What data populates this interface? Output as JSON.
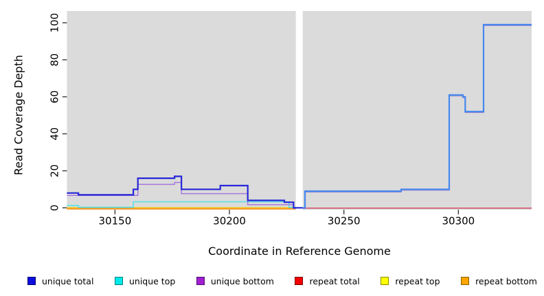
{
  "chart_data": {
    "type": "line",
    "subtype": "step",
    "title": "",
    "xlabel": "Coordinate in Reference Genome",
    "ylabel": "Read Coverage Depth",
    "xlim": [
      30129,
      30332
    ],
    "ylim": [
      0,
      100
    ],
    "xticks": [
      30150,
      30200,
      30250,
      30300
    ],
    "yticks": [
      0,
      20,
      40,
      60,
      80,
      100
    ],
    "grid": "off",
    "plot_background": "#dbdbdb",
    "page_background": "#ffffff",
    "tick_color": "#2b2b2b",
    "coverage_gap": {
      "from": 30229,
      "to": 30232,
      "color": "#ffffff"
    },
    "legend_position": "bottom",
    "legend": [
      {
        "label": "unique total",
        "color": "#0d0de0",
        "border": "#00006e"
      },
      {
        "label": "unique top",
        "color": "#00e8e8",
        "border": "#007d7d"
      },
      {
        "label": "unique bottom",
        "color": "#a020d0",
        "border": "#4d0c70"
      },
      {
        "label": "repeat total",
        "color": "#f20000",
        "border": "#7a0000"
      },
      {
        "label": "repeat top",
        "color": "#ffff00",
        "border": "#8a8a00"
      },
      {
        "label": "repeat bottom",
        "color": "#ffa500",
        "border": "#8a5c00"
      }
    ],
    "series": [
      {
        "name": "repeat total",
        "segment": "left",
        "color": "#cc2030",
        "width": 1.3,
        "yoff": 0,
        "points": [
          [
            30129,
            0
          ]
        ],
        "xend": 30229
      },
      {
        "name": "repeat top",
        "segment": "left",
        "color": "#efe23a",
        "width": 1.5,
        "yoff": -0.4,
        "points": [
          [
            30129,
            0
          ]
        ],
        "xend": 30229
      },
      {
        "name": "repeat bottom",
        "segment": "left",
        "color": "#ff9d1e",
        "width": 2.0,
        "yoff": 1.5,
        "points": [
          [
            30129,
            0
          ]
        ],
        "xend": 30229
      },
      {
        "name": "unique top",
        "segment": "left",
        "color": "#55e2e6",
        "width": 1.6,
        "yoff": -0.7,
        "points": [
          [
            30129,
            1
          ],
          [
            30134,
            0
          ],
          [
            30158,
            3
          ],
          [
            30226,
            0
          ]
        ],
        "xend": 30229
      },
      {
        "name": "unique bottom",
        "segment": "left",
        "color": "#a878dc",
        "width": 1.5,
        "yoff": 0.9,
        "points": [
          [
            30129,
            7
          ],
          [
            30160,
            13
          ],
          [
            30176,
            14
          ],
          [
            30179,
            8
          ],
          [
            30208,
            2
          ],
          [
            30228,
            0
          ]
        ],
        "xend": 30229
      },
      {
        "name": "unique total",
        "segment": "left",
        "color": "#2626d8",
        "width": 2.2,
        "yoff": 0,
        "points": [
          [
            30129,
            8
          ],
          [
            30134,
            7
          ],
          [
            30158,
            10
          ],
          [
            30160,
            16
          ],
          [
            30176,
            17
          ],
          [
            30179,
            10
          ],
          [
            30196,
            12
          ],
          [
            30208,
            4
          ],
          [
            30224,
            3
          ],
          [
            30228,
            0
          ]
        ],
        "xend": 30232
      },
      {
        "name": "repeat total",
        "segment": "right",
        "color": "#d34a66",
        "width": 1.5,
        "yoff": 0.5,
        "points": [
          [
            30232,
            0
          ]
        ],
        "xend": 30332
      },
      {
        "name": "unique bottom",
        "segment": "right",
        "color": "#ab8fd0",
        "width": 1.5,
        "yoff": 1.3,
        "points": [
          [
            30232,
            0
          ],
          [
            30233,
            9
          ],
          [
            30275,
            10
          ],
          [
            30296,
            61
          ],
          [
            30302,
            60
          ],
          [
            30303,
            52
          ],
          [
            30311,
            99
          ]
        ],
        "xend": 30332
      },
      {
        "name": "unique total",
        "segment": "right",
        "color": "#4587ee",
        "width": 2.2,
        "yoff": 0,
        "points": [
          [
            30232,
            0
          ],
          [
            30233,
            9
          ],
          [
            30275,
            10
          ],
          [
            30296,
            61
          ],
          [
            30302,
            60
          ],
          [
            30303,
            52
          ],
          [
            30311,
            99
          ]
        ],
        "xend": 30332
      }
    ]
  }
}
